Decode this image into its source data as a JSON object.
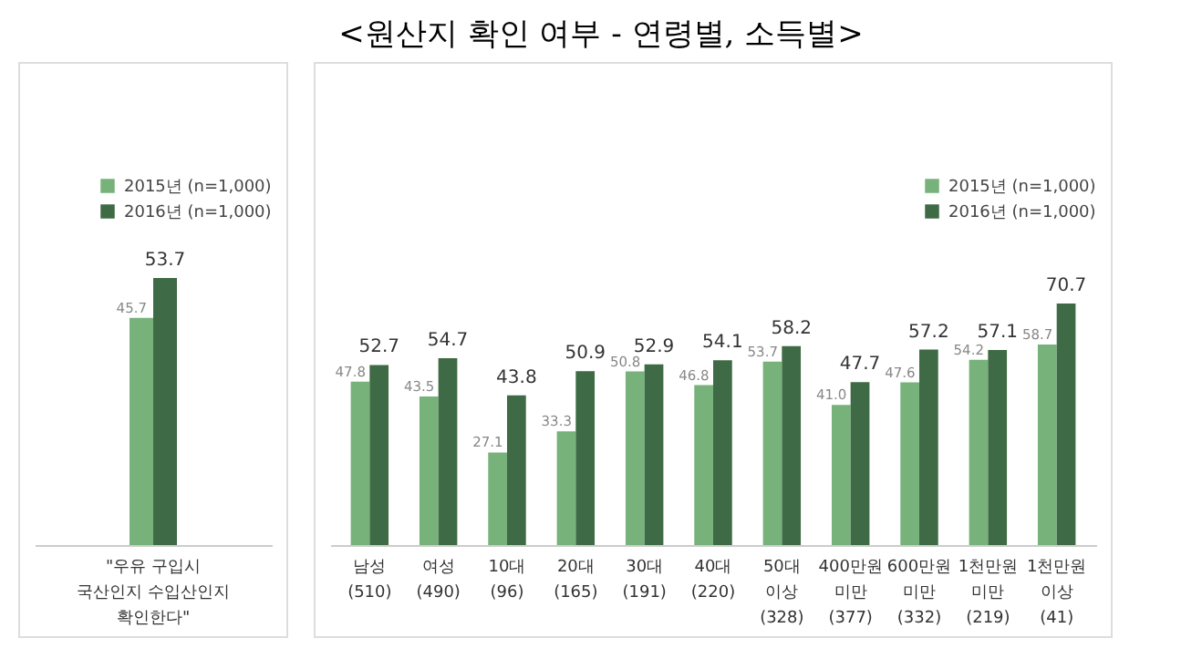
{
  "chart_data": [
    {
      "type": "bar",
      "categories": [
        "\"우유 구입시\n국산인지 수입산인지\n확인한다\""
      ],
      "series": [
        {
          "name": "2015년 (n=1,000)",
          "color": "#77b27a",
          "values": [
            45.7
          ],
          "value_labels": [
            "45.7"
          ]
        },
        {
          "name": "2016년 (n=1,000)",
          "color": "#3e6b45",
          "values": [
            53.7
          ],
          "value_labels": [
            "53.7"
          ]
        }
      ],
      "legend": "top right"
    },
    {
      "type": "bar",
      "title": "<원산지 확인 여부 - 연령별, 소득별>",
      "categories": [
        "남성\n(510)",
        "여성\n(490)",
        "10대\n(96)",
        "20대\n(165)",
        "30대\n(191)",
        "40대\n(220)",
        "50대\n이상\n(328)",
        "400만원\n미만\n(377)",
        "600만원\n미만\n(332)",
        "1천만원\n미만\n(219)",
        "1천만원\n이상\n(41)"
      ],
      "series": [
        {
          "name": "2015년 (n=1,000)",
          "color": "#77b27a",
          "values": [
            47.8,
            43.5,
            27.1,
            33.3,
            50.8,
            46.8,
            53.7,
            41.0,
            47.6,
            54.2,
            58.7
          ],
          "value_labels": [
            "47.8",
            "43.5",
            "27.1",
            "33.3",
            "50.8",
            "46.8",
            "53.7",
            "41.0",
            "47.6",
            "54.2",
            "58.7"
          ]
        },
        {
          "name": "2016년 (n=1,000)",
          "color": "#3e6b45",
          "values": [
            52.7,
            54.7,
            43.8,
            50.9,
            52.9,
            54.1,
            58.2,
            47.7,
            57.2,
            57.1,
            70.7
          ],
          "value_labels": [
            "52.7",
            "54.7",
            "43.8",
            "50.9",
            "52.9",
            "54.1",
            "58.2",
            "47.7",
            "57.2",
            "57.1",
            "70.7"
          ]
        }
      ],
      "legend": "top right"
    }
  ]
}
